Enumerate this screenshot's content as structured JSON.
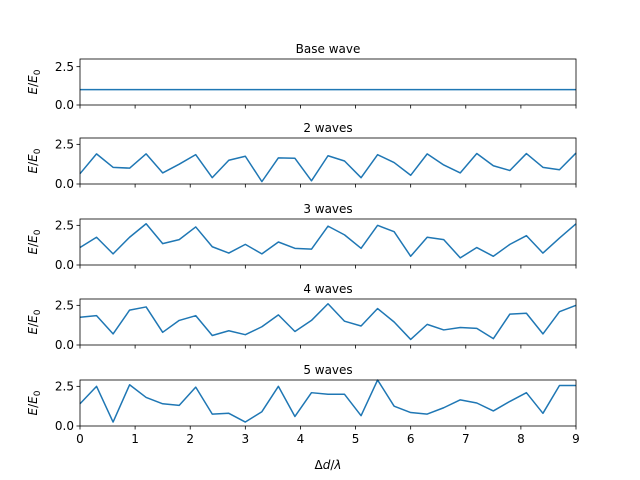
{
  "chart_data": {
    "type": "line",
    "shared_x": {
      "xlabel_parts": [
        "Δ",
        "d",
        "/",
        "λ"
      ],
      "xlim": [
        0,
        9
      ],
      "xticks": [
        0,
        1,
        2,
        3,
        4,
        5,
        6,
        7,
        8,
        9
      ]
    },
    "ylabel_parts": [
      "E",
      "/",
      "E",
      "0"
    ],
    "color": "#1f77b4",
    "subplots": [
      {
        "title": "Base wave",
        "ylim": [
          0,
          3
        ],
        "yticks": [
          0.0,
          2.5
        ],
        "ytick_labels": [
          "0.0",
          "2.5"
        ],
        "x": [
          0,
          9
        ],
        "y": [
          1.0,
          1.0
        ]
      },
      {
        "title": "2 waves",
        "ylim": [
          0,
          2.9
        ],
        "yticks": [
          0.0,
          2.5
        ],
        "ytick_labels": [
          "0.0",
          "2.5"
        ],
        "x": [
          0,
          0.3,
          0.6,
          0.9,
          1.2,
          1.5,
          1.8,
          2.1,
          2.4,
          2.7,
          3.0,
          3.3,
          3.6,
          3.9,
          4.2,
          4.5,
          4.8,
          5.1,
          5.4,
          5.7,
          6.0,
          6.3,
          6.6,
          6.9,
          7.2,
          7.5,
          7.8,
          8.1,
          8.4,
          8.7,
          9.0
        ],
        "y": [
          0.65,
          1.9,
          1.05,
          1.0,
          1.9,
          0.7,
          1.25,
          1.85,
          0.4,
          1.5,
          1.75,
          0.15,
          1.65,
          1.62,
          0.2,
          1.78,
          1.45,
          0.4,
          1.85,
          1.35,
          0.55,
          1.9,
          1.2,
          0.7,
          1.92,
          1.15,
          0.85,
          1.92,
          1.05,
          0.9,
          1.95
        ]
      },
      {
        "title": "3 waves",
        "ylim": [
          0,
          2.9
        ],
        "yticks": [
          0.0,
          2.5
        ],
        "ytick_labels": [
          "0.0",
          "2.5"
        ],
        "x": [
          0,
          0.3,
          0.6,
          0.9,
          1.2,
          1.5,
          1.8,
          2.1,
          2.4,
          2.7,
          3.0,
          3.3,
          3.6,
          3.9,
          4.2,
          4.5,
          4.8,
          5.1,
          5.4,
          5.7,
          6.0,
          6.3,
          6.6,
          6.9,
          7.2,
          7.5,
          7.8,
          8.1,
          8.4,
          8.7,
          9.0
        ],
        "y": [
          1.1,
          1.75,
          0.7,
          1.75,
          2.6,
          1.35,
          1.6,
          2.4,
          1.15,
          0.75,
          1.3,
          0.7,
          1.45,
          1.05,
          1.0,
          2.45,
          1.9,
          1.05,
          2.5,
          2.1,
          0.55,
          1.75,
          1.6,
          0.45,
          1.1,
          0.55,
          1.3,
          1.85,
          0.75,
          1.7,
          2.6
        ]
      },
      {
        "title": "4 waves",
        "ylim": [
          0,
          2.9
        ],
        "yticks": [
          0.0,
          2.5
        ],
        "ytick_labels": [
          "0.0",
          "2.5"
        ],
        "x": [
          0,
          0.3,
          0.6,
          0.9,
          1.2,
          1.5,
          1.8,
          2.1,
          2.4,
          2.7,
          3.0,
          3.3,
          3.6,
          3.9,
          4.2,
          4.5,
          4.8,
          5.1,
          5.4,
          5.7,
          6.0,
          6.3,
          6.6,
          6.9,
          7.2,
          7.5,
          7.8,
          8.1,
          8.4,
          8.7,
          9.0
        ],
        "y": [
          1.75,
          1.85,
          0.7,
          2.2,
          2.4,
          0.8,
          1.55,
          1.85,
          0.6,
          0.9,
          0.65,
          1.15,
          1.9,
          0.85,
          1.55,
          2.6,
          1.5,
          1.2,
          2.3,
          1.45,
          0.35,
          1.3,
          0.95,
          1.1,
          1.05,
          0.4,
          1.95,
          2.0,
          0.7,
          2.1,
          2.5
        ]
      },
      {
        "title": "5 waves",
        "ylim": [
          0,
          2.9
        ],
        "yticks": [
          0.0,
          2.5
        ],
        "ytick_labels": [
          "0.0",
          "2.5"
        ],
        "x": [
          0,
          0.3,
          0.6,
          0.9,
          1.2,
          1.5,
          1.8,
          2.1,
          2.4,
          2.7,
          3.0,
          3.3,
          3.6,
          3.9,
          4.2,
          4.5,
          4.8,
          5.1,
          5.4,
          5.7,
          6.0,
          6.3,
          6.6,
          6.9,
          7.2,
          7.5,
          7.8,
          8.1,
          8.4,
          8.7,
          9.0
        ],
        "y": [
          1.4,
          2.5,
          0.25,
          2.6,
          1.8,
          1.4,
          1.3,
          2.45,
          0.75,
          0.8,
          0.25,
          0.9,
          2.5,
          0.6,
          2.1,
          2.0,
          2.0,
          0.65,
          2.9,
          1.25,
          0.85,
          0.75,
          1.15,
          1.65,
          1.45,
          0.95,
          1.55,
          2.1,
          0.8,
          2.55,
          2.55
        ]
      }
    ]
  }
}
